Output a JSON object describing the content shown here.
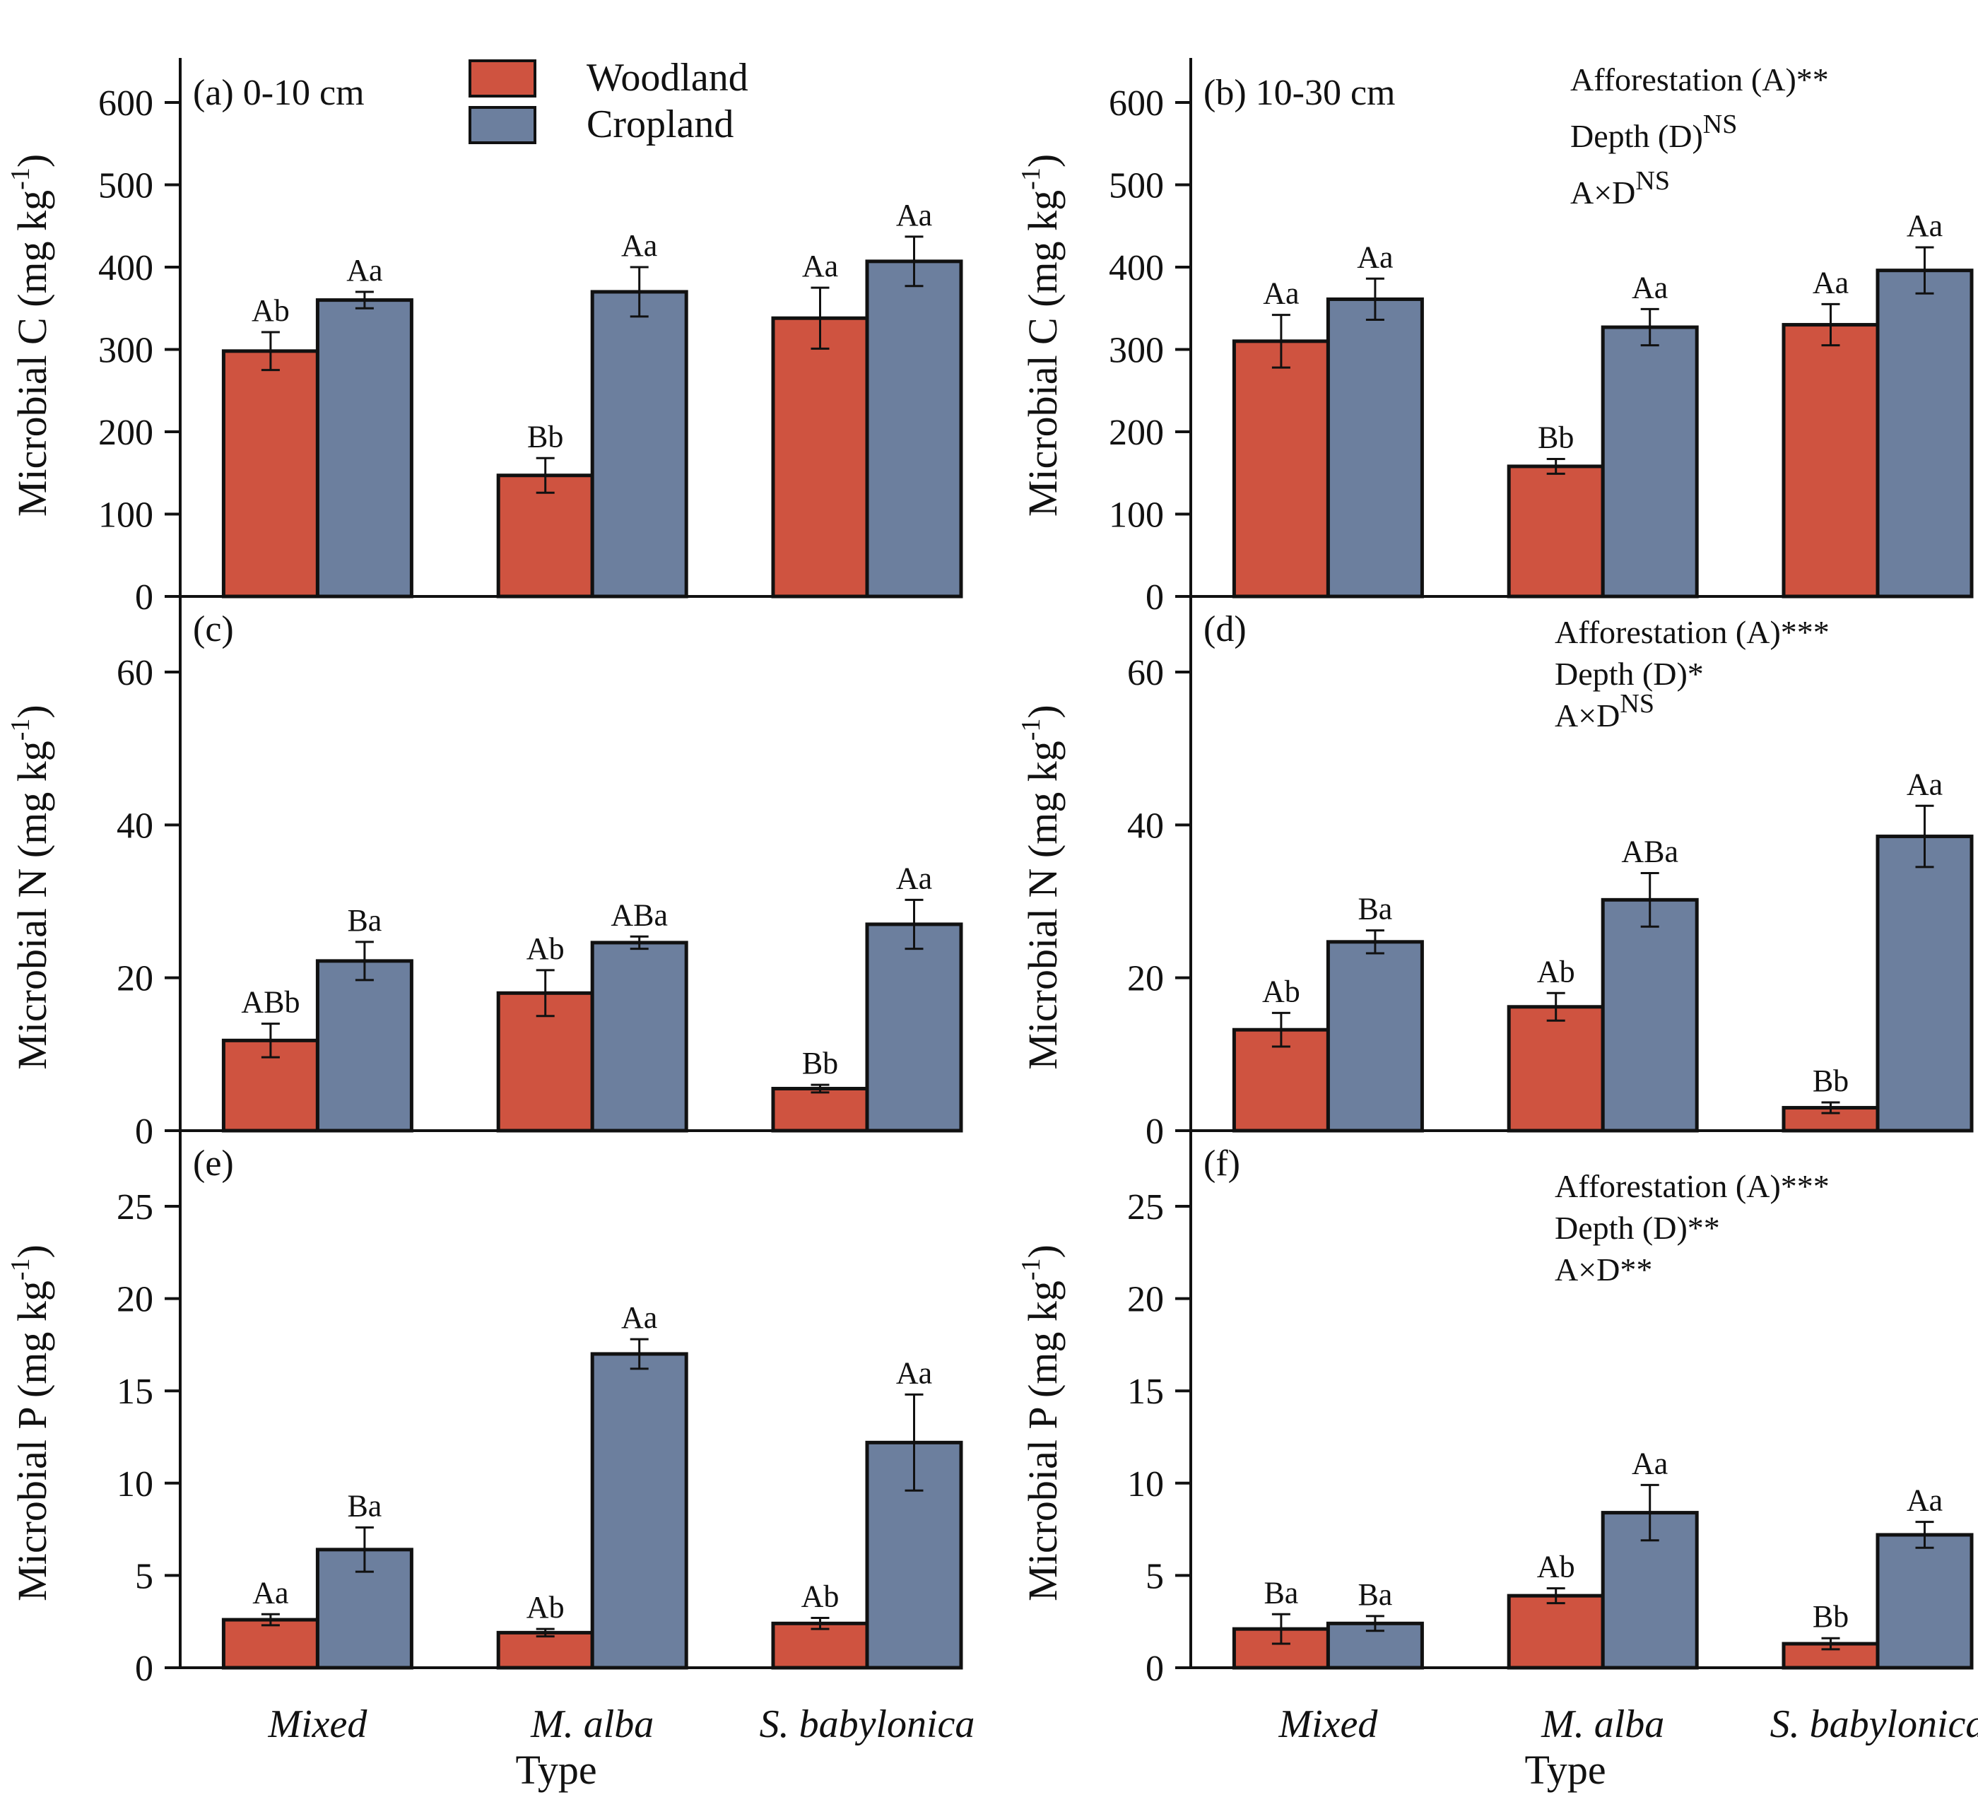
{
  "legend": {
    "woodland": "Woodland",
    "cropland": "Cropland"
  },
  "colors": {
    "woodland": "#cf5340",
    "cropland": "#6c7f9e",
    "axis": "#111111"
  },
  "shared": {
    "xlabel": "Type",
    "ylabel_unit": "(mg kg",
    "ylabel_sup": "-1",
    "ylabel_close": ")"
  },
  "chart_data": [
    {
      "id": "a",
      "type": "bar",
      "title": "(a) 0-10 cm",
      "ylabel_main": "Microbial C",
      "ylim": [
        0,
        600
      ],
      "yticks": [
        0,
        100,
        200,
        300,
        400,
        500,
        600
      ],
      "categories": [
        "Mixed",
        "M. alba",
        "S. babylonica"
      ],
      "series": [
        {
          "name": "Woodland",
          "values": [
            298,
            147,
            338
          ],
          "errors": [
            23,
            21,
            37
          ],
          "labels": [
            "Ab",
            "Bb",
            "Aa"
          ]
        },
        {
          "name": "Cropland",
          "values": [
            360,
            370,
            407
          ],
          "errors": [
            10,
            30,
            30
          ],
          "labels": [
            "Aa",
            "Aa",
            "Aa"
          ]
        }
      ],
      "annotation": []
    },
    {
      "id": "b",
      "type": "bar",
      "title": "(b) 10-30 cm",
      "ylabel_main": "Microbial C",
      "ylim": [
        0,
        600
      ],
      "yticks": [
        0,
        100,
        200,
        300,
        400,
        500,
        600
      ],
      "categories": [
        "Mixed",
        "M. alba",
        "S. babylonica"
      ],
      "series": [
        {
          "name": "Woodland",
          "values": [
            310,
            158,
            330
          ],
          "errors": [
            32,
            9,
            25
          ],
          "labels": [
            "Aa",
            "Bb",
            "Aa"
          ]
        },
        {
          "name": "Cropland",
          "values": [
            361,
            327,
            396
          ],
          "errors": [
            25,
            22,
            28
          ],
          "labels": [
            "Aa",
            "Aa",
            "Aa"
          ]
        }
      ],
      "annotation": [
        {
          "text": "Afforestation (A)**",
          "sup": ""
        },
        {
          "text": "Depth (D)",
          "sup": "NS"
        },
        {
          "text": "A×D",
          "sup": "NS"
        }
      ]
    },
    {
      "id": "c",
      "type": "bar",
      "title": "(c)",
      "ylabel_main": "Microbial N",
      "ylim": [
        0,
        60
      ],
      "yticks": [
        0,
        20,
        40,
        60
      ],
      "categories": [
        "Mixed",
        "M. alba",
        "S. babylonica"
      ],
      "series": [
        {
          "name": "Woodland",
          "values": [
            11.8,
            18.0,
            5.5
          ],
          "errors": [
            2.2,
            3.0,
            0.5
          ],
          "labels": [
            "ABb",
            "Ab",
            "Bb"
          ]
        },
        {
          "name": "Cropland",
          "values": [
            22.2,
            24.6,
            27.0
          ],
          "errors": [
            2.5,
            0.8,
            3.2
          ],
          "labels": [
            "Ba",
            "ABa",
            "Aa"
          ]
        }
      ],
      "annotation": []
    },
    {
      "id": "d",
      "type": "bar",
      "title": "(d)",
      "ylabel_main": "Microbial N",
      "ylim": [
        0,
        60
      ],
      "yticks": [
        0,
        20,
        40,
        60
      ],
      "categories": [
        "Mixed",
        "M. alba",
        "S. babylonica"
      ],
      "series": [
        {
          "name": "Woodland",
          "values": [
            13.2,
            16.2,
            3.0
          ],
          "errors": [
            2.2,
            1.8,
            0.7
          ],
          "labels": [
            "Ab",
            "Ab",
            "Bb"
          ]
        },
        {
          "name": "Cropland",
          "values": [
            24.7,
            30.2,
            38.5
          ],
          "errors": [
            1.5,
            3.5,
            4.0
          ],
          "labels": [
            "Ba",
            "ABa",
            "Aa"
          ]
        }
      ],
      "annotation": [
        {
          "text": "Afforestation (A)***",
          "sup": ""
        },
        {
          "text": "Depth (D)*",
          "sup": ""
        },
        {
          "text": "A×D",
          "sup": "NS"
        }
      ]
    },
    {
      "id": "e",
      "type": "bar",
      "title": "(e)",
      "ylabel_main": "Microbial P",
      "ylim": [
        0,
        25
      ],
      "yticks": [
        0,
        5,
        10,
        15,
        20,
        25
      ],
      "categories": [
        "Mixed",
        "M. alba",
        "S. babylonica"
      ],
      "series": [
        {
          "name": "Woodland",
          "values": [
            2.6,
            1.9,
            2.4
          ],
          "errors": [
            0.3,
            0.2,
            0.3
          ],
          "labels": [
            "Aa",
            "Ab",
            "Ab"
          ]
        },
        {
          "name": "Cropland",
          "values": [
            6.4,
            17.0,
            12.2
          ],
          "errors": [
            1.2,
            0.8,
            2.6
          ],
          "labels": [
            "Ba",
            "Aa",
            "Aa"
          ]
        }
      ],
      "annotation": []
    },
    {
      "id": "f",
      "type": "bar",
      "title": "(f)",
      "ylabel_main": "Microbial P",
      "ylim": [
        0,
        25
      ],
      "yticks": [
        0,
        5,
        10,
        15,
        20,
        25
      ],
      "categories": [
        "Mixed",
        "M. alba",
        "S. babylonica"
      ],
      "series": [
        {
          "name": "Woodland",
          "values": [
            2.1,
            3.9,
            1.3
          ],
          "errors": [
            0.8,
            0.4,
            0.3
          ],
          "labels": [
            "Ba",
            "Ab",
            "Bb"
          ]
        },
        {
          "name": "Cropland",
          "values": [
            2.4,
            8.4,
            7.2
          ],
          "errors": [
            0.4,
            1.5,
            0.7
          ],
          "labels": [
            "Ba",
            "Aa",
            "Aa"
          ]
        }
      ],
      "annotation": [
        {
          "text": "Afforestation (A)***",
          "sup": ""
        },
        {
          "text": "Depth (D)**",
          "sup": ""
        },
        {
          "text": "A×D**",
          "sup": ""
        }
      ]
    }
  ]
}
